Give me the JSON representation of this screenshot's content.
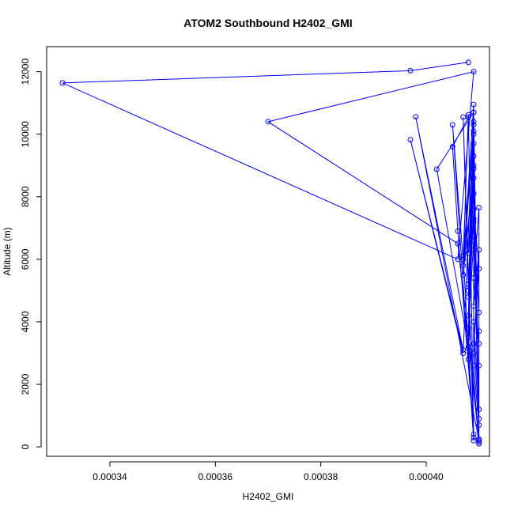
{
  "chart_data": {
    "type": "scatter",
    "title": "ATOM2 Southbound H2402_GMI",
    "xlabel": "H2402_GMI",
    "ylabel": "Altitude (m)",
    "xlim": [
      0.000328,
      0.000412
    ],
    "ylim": [
      -300,
      12800
    ],
    "x_ticks": [
      0.00034,
      0.00036,
      0.00038,
      0.0004
    ],
    "x_tick_labels": [
      "0.00034",
      "0.00036",
      "0.00038",
      "0.00040"
    ],
    "y_ticks": [
      0,
      2000,
      4000,
      6000,
      8000,
      10000,
      12000
    ],
    "y_tick_labels": [
      "0",
      "2000",
      "4000",
      "6000",
      "8000",
      "10000",
      "12000"
    ],
    "series_color": "#0000ff",
    "grid": false,
    "series": [
      {
        "connected": true,
        "points": [
          [
            0.000408,
            12300
          ],
          [
            0.000397,
            12030
          ],
          [
            0.000331,
            11640
          ],
          [
            0.000406,
            6000
          ],
          [
            0.000409,
            12000
          ],
          [
            0.00037,
            10400
          ],
          [
            0.000406,
            6500
          ],
          [
            0.00041,
            200
          ],
          [
            0.000398,
            10560
          ],
          [
            0.000407,
            3100
          ],
          [
            0.000397,
            9820
          ],
          [
            0.000407,
            3000
          ],
          [
            0.000409,
            10700
          ],
          [
            0.000402,
            8880
          ],
          [
            0.000408,
            3200
          ],
          [
            0.000409,
            200
          ],
          [
            0.000405,
            10300
          ],
          [
            0.000407,
            6000
          ],
          [
            0.000408,
            10550
          ],
          [
            0.000405,
            9600
          ],
          [
            0.000406,
            6900
          ],
          [
            0.000409,
            400
          ],
          [
            0.000407,
            10550
          ],
          [
            0.000408,
            5000
          ],
          [
            0.000409,
            10000
          ],
          [
            0.000407,
            6100
          ],
          [
            0.000409,
            300
          ],
          [
            0.000408,
            10620
          ],
          [
            0.000407,
            5800
          ],
          [
            0.000409,
            10950
          ],
          [
            0.000408,
            4200
          ],
          [
            0.00041,
            150
          ],
          [
            0.000409,
            10400
          ],
          [
            0.000407,
            5500
          ],
          [
            0.000409,
            8900
          ],
          [
            0.000408,
            2800
          ],
          [
            0.000409,
            9700
          ],
          [
            0.000408,
            3500
          ],
          [
            0.00041,
            250
          ],
          [
            0.000409,
            10700
          ],
          [
            0.000408,
            4800
          ],
          [
            0.000409,
            9300
          ],
          [
            0.000408,
            6200
          ],
          [
            0.000409,
            8100
          ],
          [
            0.000409,
            2600
          ],
          [
            0.00041,
            700
          ],
          [
            0.000409,
            10300
          ],
          [
            0.000409,
            7200
          ],
          [
            0.000408,
            5200
          ],
          [
            0.000409,
            9000
          ],
          [
            0.000409,
            4000
          ],
          [
            0.00041,
            1200
          ],
          [
            0.000409,
            10100
          ],
          [
            0.000409,
            6600
          ],
          [
            0.000408,
            3800
          ],
          [
            0.000409,
            7600
          ],
          [
            0.00041,
            5700
          ],
          [
            0.000409,
            3300
          ],
          [
            0.00041,
            900
          ],
          [
            0.000409,
            8600
          ],
          [
            0.000409,
            6300
          ],
          [
            0.000409,
            4500
          ],
          [
            0.00041,
            6300
          ],
          [
            0.000409,
            3000
          ],
          [
            0.00041,
            3700
          ],
          [
            0.00041,
            100
          ],
          [
            0.000409,
            7300
          ],
          [
            0.00041,
            4300
          ],
          [
            0.00041,
            2600
          ],
          [
            0.00041,
            7650
          ],
          [
            0.000409,
            5400
          ],
          [
            0.00041,
            3300
          ],
          [
            0.00041,
            200
          ]
        ]
      }
    ]
  }
}
